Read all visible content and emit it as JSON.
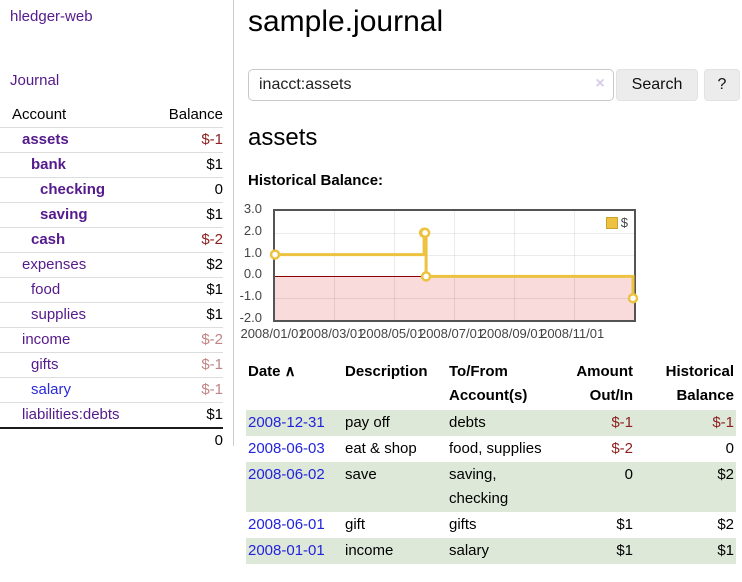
{
  "app": {
    "brand": "hledger-web",
    "nav_journal": "Journal"
  },
  "sidebar": {
    "headers": {
      "account": "Account",
      "balance": "Balance"
    },
    "accounts": [
      {
        "name": "assets",
        "indent": 0,
        "bold": true,
        "balance": "$-1"
      },
      {
        "name": "bank",
        "indent": 1,
        "bold": true,
        "balance": "$1"
      },
      {
        "name": "checking",
        "indent": 2,
        "bold": true,
        "balance": "0"
      },
      {
        "name": "saving",
        "indent": 2,
        "bold": true,
        "balance": "$1"
      },
      {
        "name": "cash",
        "indent": 1,
        "bold": true,
        "balance": "$-2"
      },
      {
        "name": "expenses",
        "indent": 0,
        "bold": false,
        "balance": "$2"
      },
      {
        "name": "food",
        "indent": 1,
        "bold": false,
        "balance": "$1"
      },
      {
        "name": "supplies",
        "indent": 1,
        "bold": false,
        "balance": "$1"
      },
      {
        "name": "income",
        "indent": 0,
        "bold": false,
        "balance": "$-2"
      },
      {
        "name": "gifts",
        "indent": 1,
        "bold": false,
        "balance": "$-1"
      },
      {
        "name": "salary",
        "indent": 1,
        "bold": false,
        "balance": "$-1",
        "link_color": "blue"
      },
      {
        "name": "liabilities:debts",
        "indent": 0,
        "bold": false,
        "balance": "$1"
      }
    ],
    "total": "0"
  },
  "header": {
    "title": "sample.journal"
  },
  "search": {
    "value": "inacct:assets",
    "clear_icon": "×",
    "search_label": "Search",
    "help_label": "?"
  },
  "account_page": {
    "title": "assets",
    "chart_label": "Historical Balance:"
  },
  "chart_data": {
    "type": "line",
    "title": "Historical Balance:",
    "series": [
      {
        "name": "$",
        "color": "#edc240",
        "step": true,
        "points": [
          [
            "2008-01-01",
            1
          ],
          [
            "2008-06-01",
            2
          ],
          [
            "2008-06-02",
            2
          ],
          [
            "2008-06-03",
            0
          ],
          [
            "2008-12-31",
            -1
          ]
        ]
      }
    ],
    "x_range": [
      "2008-01-01",
      "2009-01-01"
    ],
    "x_ticks": [
      "2008/01/01",
      "2008/03/01",
      "2008/05/01",
      "2008/07/01",
      "2008/09/01",
      "2008/11/01"
    ],
    "y_ticks": [
      "3.0",
      "2.0",
      "1.0",
      "0.0",
      "-1.0",
      "-2.0"
    ],
    "ylim": [
      -2,
      3
    ],
    "grid": true,
    "legend_position": "top-right",
    "negative_region_color": "#f9dbdb",
    "zero_line_color": "#8b0000"
  },
  "register": {
    "headers": [
      {
        "lines": [
          "Date"
        ],
        "sort": "∧",
        "align": "left"
      },
      {
        "lines": [
          "Description"
        ],
        "align": "left"
      },
      {
        "lines": [
          "To/From",
          "Account(s)"
        ],
        "align": "left"
      },
      {
        "lines": [
          "Amount",
          "Out/In"
        ],
        "align": "right"
      },
      {
        "lines": [
          "Historical",
          "Balance"
        ],
        "align": "right"
      }
    ],
    "rows": [
      {
        "date": "2008-12-31",
        "description": "pay off",
        "accounts": "debts",
        "amount": "$-1",
        "balance": "$-1"
      },
      {
        "date": "2008-06-03",
        "description": "eat & shop",
        "accounts": "food, supplies",
        "amount": "$-2",
        "balance": "0"
      },
      {
        "date": "2008-06-02",
        "description": "save",
        "accounts": "saving, checking",
        "amount": "0",
        "balance": "$2"
      },
      {
        "date": "2008-06-01",
        "description": "gift",
        "accounts": "gifts",
        "amount": "$1",
        "balance": "$2"
      },
      {
        "date": "2008-01-01",
        "description": "income",
        "accounts": "salary",
        "amount": "$1",
        "balance": "$1"
      }
    ]
  }
}
